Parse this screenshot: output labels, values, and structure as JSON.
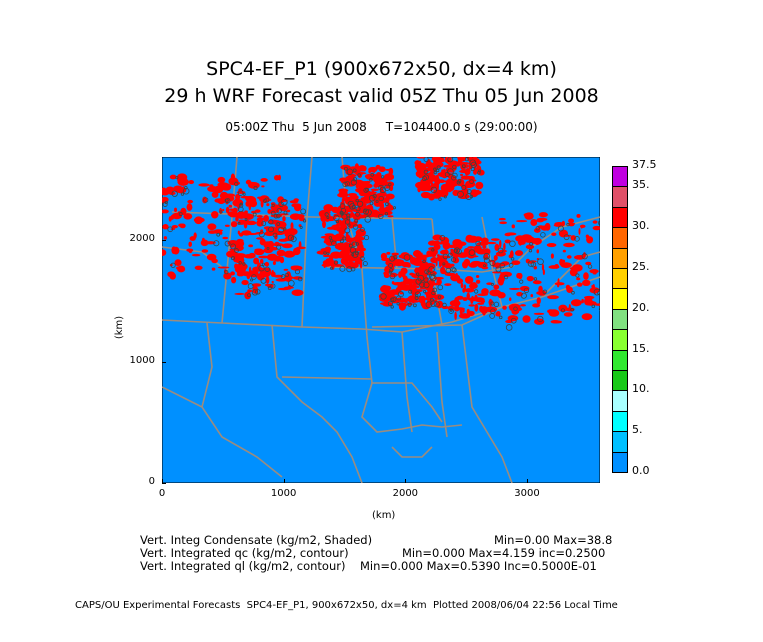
{
  "header": {
    "title": "SPC4-EF_P1 (900x672x50, dx=4 km)",
    "subtitle": "29 h WRF Forecast valid 05Z Thu 05 Jun 2008",
    "time_line": "05:00Z Thu  5 Jun 2008     T=104400.0 s (29:00:00)"
  },
  "axes": {
    "x_label": "(km)",
    "y_label": "(km)",
    "x_ticks": [
      "0",
      "1000",
      "2000",
      "3000"
    ],
    "y_ticks": [
      "0",
      "1000",
      "2000"
    ],
    "x_range": [
      0,
      3600
    ],
    "y_range": [
      0,
      2688
    ]
  },
  "colorbar": {
    "labels": [
      "0.0",
      "5.",
      "10.",
      "15.",
      "20.",
      "25.",
      "30.",
      "35.",
      "37.5"
    ],
    "colors": [
      "#0090ff",
      "#00c0ff",
      "#00ffff",
      "#a8ffff",
      "#18c818",
      "#30e830",
      "#88ff30",
      "#80e080",
      "#ffff00",
      "#ffd000",
      "#ffa000",
      "#ff6600",
      "#ff0000",
      "#e05068",
      "#c000e0"
    ]
  },
  "map_colors": {
    "background": "#0090ff",
    "boundaries": "#9a8c80",
    "shade": "#ff0000",
    "contour": "#404040"
  },
  "notes": [
    {
      "label": "Vert. Integ Condensate (kg/m2, Shaded)",
      "stats": "Min=0.00 Max=38.8"
    },
    {
      "label": "Vert. Integrated qc (kg/m2, contour)",
      "stats": "Min=0.000 Max=4.159 inc=0.2500"
    },
    {
      "label": "Vert. Integrated ql (kg/m2, contour)",
      "stats": "Min=0.000 Max=0.5390 Inc=0.5000E-01"
    }
  ],
  "footer": "CAPS/OU Experimental Forecasts  SPC4-EF_P1, 900x672x50, dx=4 km  Plotted 2008/06/04 22:56 Local Time"
}
